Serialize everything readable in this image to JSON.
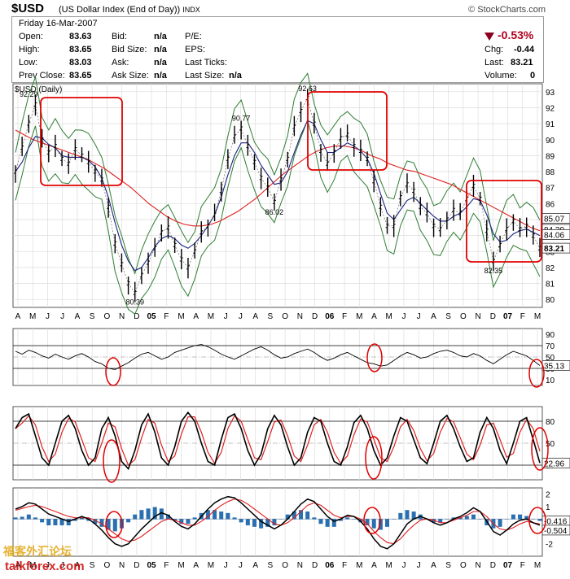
{
  "header": {
    "symbol": "$USD",
    "name": "(US Dollar Index (End of Day))",
    "exchange": "INDX",
    "brand": "© StockCharts.com"
  },
  "info": {
    "date": "Friday  16-Mar-2007",
    "open_label": "Open:",
    "open": "83.63",
    "high_label": "High:",
    "high": "83.65",
    "low_label": "Low:",
    "low": "83.03",
    "prev_label": "Prev Close:",
    "prev": "83.65",
    "bid_label": "Bid:",
    "bid": "n/a",
    "bidsize_label": "Bid Size:",
    "bidsize": "n/a",
    "ask_label": "Ask:",
    "ask": "n/a",
    "asksize_label": "Ask Size:",
    "asksize": "n/a",
    "pe_label": "P/E:",
    "eps_label": "EPS:",
    "lasttick_label": "Last Ticks:",
    "lastsize_label": "Last Size:",
    "lastsize": "n/a",
    "chg_pct": "-0.53%",
    "chg_label": "Chg:",
    "chg": "-0.44",
    "last_label": "Last:",
    "last": "83.21",
    "volume_label": "Volume:",
    "volume": "0"
  },
  "chart_data": [
    {
      "type": "line",
      "title": "$USD (Daily)",
      "ylim": [
        79.5,
        93.5
      ],
      "y_ticks": [
        80,
        81,
        82,
        83,
        84,
        85,
        86,
        87,
        88,
        89,
        90,
        91,
        92,
        93
      ],
      "x_tick_labels": [
        "A",
        "M",
        "J",
        "J",
        "A",
        "S",
        "O",
        "N",
        "D",
        "05",
        "F",
        "M",
        "A",
        "M",
        "J",
        "J",
        "A",
        "S",
        "O",
        "N",
        "D",
        "06",
        "F",
        "M",
        "A",
        "M",
        "J",
        "J",
        "A",
        "S",
        "O",
        "N",
        "D",
        "07",
        "F",
        "M"
      ],
      "bold_x_ticks": [
        "05",
        "06",
        "07"
      ],
      "annotations": [
        "92.29",
        "80.39",
        "90.77",
        "86.02",
        "92.63",
        "82.35"
      ],
      "right_labels": [
        "85.07",
        "84.39",
        "84.06",
        "83.21"
      ],
      "price_series": [
        88.0,
        89.5,
        91.0,
        92.2,
        90.0,
        89.2,
        89.6,
        88.8,
        88.5,
        89.4,
        89.0,
        88.6,
        88.0,
        87.5,
        85.8,
        83.5,
        82.2,
        81.0,
        80.4,
        81.5,
        82.3,
        83.2,
        84.2,
        84.5,
        83.4,
        82.5,
        82.0,
        83.0,
        84.2,
        84.6,
        85.3,
        86.8,
        88.8,
        90.2,
        90.7,
        89.6,
        88.6,
        87.6,
        87.0,
        86.1,
        87.5,
        88.8,
        90.8,
        91.8,
        92.6,
        91.0,
        89.3,
        88.5,
        89.2,
        90.1,
        90.3,
        89.6,
        89.3,
        88.8,
        87.4,
        85.8,
        84.6,
        84.6,
        86.4,
        87.2,
        86.8,
        85.8,
        85.4,
        84.6,
        84.4,
        85.0,
        85.6,
        85.4,
        86.3,
        87.1,
        86.3,
        84.3,
        82.4,
        83.4,
        84.4,
        84.9,
        84.4,
        84.6,
        84.0,
        83.2
      ],
      "ma_red": [
        90.6,
        90.3,
        90.0,
        89.8,
        89.6,
        89.4,
        89.2,
        89.0,
        88.8,
        88.5,
        88.2,
        87.8,
        87.4,
        87.0,
        86.5,
        86.0,
        85.6,
        85.2,
        84.9,
        84.7,
        84.6,
        84.6,
        84.7,
        84.9,
        85.2,
        85.5,
        85.9,
        86.3,
        86.8,
        87.3,
        87.8,
        88.2,
        88.6,
        89.0,
        89.3,
        89.5,
        89.6,
        89.6,
        89.5,
        89.3,
        89.0,
        88.8,
        88.5,
        88.3,
        88.1,
        88.0,
        87.8,
        87.6,
        87.4,
        87.2,
        86.9,
        86.6,
        86.3,
        86.0,
        85.7,
        85.4,
        85.1,
        84.8,
        84.5,
        84.3
      ],
      "ma_blue": [
        88.0,
        88.6,
        89.5,
        90.2,
        90.1,
        89.7,
        89.5,
        89.0,
        88.9,
        88.9,
        88.9,
        88.7,
        88.3,
        87.6,
        86.4,
        84.8,
        83.4,
        82.4,
        81.8,
        82.0,
        82.6,
        83.3,
        83.8,
        84.0,
        83.8,
        83.4,
        83.2,
        83.5,
        84.0,
        84.6,
        85.3,
        86.4,
        87.8,
        89.0,
        89.8,
        89.8,
        89.2,
        88.4,
        87.8,
        87.2,
        87.3,
        88.0,
        89.2,
        90.3,
        91.2,
        91.0,
        90.0,
        89.2,
        89.2,
        89.5,
        89.8,
        89.6,
        89.3,
        88.8,
        87.9,
        86.6,
        85.4,
        85.0,
        85.6,
        86.2,
        86.4,
        86.0,
        85.6,
        85.2,
        84.9,
        84.9,
        85.2,
        85.4,
        85.8,
        86.3,
        86.2,
        85.3,
        84.1,
        83.6,
        83.7,
        84.1,
        84.3,
        84.4,
        84.2,
        84.0
      ],
      "highlight_boxes": 4
    },
    {
      "type": "line",
      "title": "RSI",
      "ylim": [
        0,
        100
      ],
      "y_ticks": [
        10,
        30,
        50,
        70,
        90
      ],
      "last_value": "35.13",
      "values": [
        60,
        55,
        62,
        58,
        52,
        48,
        55,
        50,
        46,
        52,
        56,
        50,
        42,
        38,
        30,
        28,
        34,
        40,
        48,
        55,
        58,
        52,
        46,
        50,
        58,
        62,
        66,
        70,
        72,
        68,
        62,
        55,
        50,
        46,
        52,
        58,
        64,
        68,
        62,
        54,
        48,
        50,
        56,
        60,
        64,
        58,
        50,
        44,
        48,
        54,
        58,
        52,
        46,
        40,
        38,
        34,
        36,
        44,
        52,
        58,
        54,
        48,
        50,
        56,
        60,
        62,
        58,
        52,
        50,
        56,
        52,
        44,
        38,
        46,
        54,
        60,
        56,
        52,
        44,
        35
      ]
    },
    {
      "type": "line",
      "title": "Slow Stochastic",
      "ylim": [
        0,
        100
      ],
      "y_ticks": [
        20,
        50,
        80
      ],
      "last_value": "22.96",
      "values": [
        70,
        85,
        90,
        60,
        30,
        20,
        50,
        80,
        88,
        70,
        40,
        20,
        30,
        70,
        85,
        60,
        25,
        15,
        40,
        75,
        90,
        65,
        30,
        20,
        45,
        80,
        92,
        80,
        50,
        25,
        20,
        55,
        85,
        90,
        70,
        40,
        20,
        35,
        70,
        88,
        75,
        45,
        20,
        30,
        65,
        85,
        80,
        50,
        25,
        20,
        45,
        78,
        88,
        70,
        40,
        20,
        30,
        60,
        85,
        80,
        55,
        30,
        22,
        50,
        80,
        88,
        70,
        45,
        25,
        30,
        65,
        85,
        70,
        40,
        22,
        50,
        80,
        85,
        55,
        23
      ]
    },
    {
      "type": "line",
      "title": "MACD",
      "ylim": [
        -3,
        2.5
      ],
      "y_ticks": [
        -2,
        -1,
        0,
        1,
        2
      ],
      "last_labels": [
        "-0.416",
        "-0.504"
      ],
      "macd": [
        0.8,
        1.0,
        1.3,
        1.2,
        0.8,
        0.4,
        0.2,
        0.0,
        -0.2,
        0.0,
        0.2,
        0.0,
        -0.4,
        -0.9,
        -1.5,
        -2.0,
        -2.2,
        -2.0,
        -1.4,
        -0.8,
        -0.3,
        0.2,
        0.5,
        0.3,
        -0.2,
        -0.6,
        -0.8,
        -0.4,
        0.2,
        0.8,
        1.3,
        1.6,
        1.8,
        1.7,
        1.3,
        0.8,
        0.3,
        -0.2,
        -0.5,
        -0.8,
        -0.5,
        0.0,
        0.6,
        1.2,
        1.6,
        1.4,
        0.8,
        0.2,
        -0.2,
        0.0,
        0.3,
        0.2,
        -0.2,
        -0.8,
        -1.6,
        -2.2,
        -2.4,
        -2.0,
        -1.2,
        -0.4,
        0.0,
        0.2,
        0.0,
        -0.3,
        -0.5,
        -0.3,
        0.0,
        0.2,
        0.5,
        0.9,
        0.6,
        -0.2,
        -1.0,
        -1.3,
        -0.9,
        -0.4,
        -0.1,
        0.0,
        -0.3,
        -0.5
      ],
      "signal": [
        0.7,
        0.85,
        1.0,
        1.1,
        1.0,
        0.8,
        0.6,
        0.4,
        0.2,
        0.1,
        0.1,
        0.1,
        -0.1,
        -0.4,
        -0.8,
        -1.2,
        -1.6,
        -1.8,
        -1.7,
        -1.4,
        -1.0,
        -0.6,
        -0.2,
        0.0,
        -0.1,
        -0.3,
        -0.5,
        -0.5,
        -0.2,
        0.2,
        0.7,
        1.1,
        1.4,
        1.6,
        1.5,
        1.2,
        0.8,
        0.4,
        0.0,
        -0.4,
        -0.5,
        -0.3,
        0.1,
        0.6,
        1.1,
        1.3,
        1.1,
        0.7,
        0.3,
        0.1,
        0.2,
        0.2,
        0.0,
        -0.4,
        -1.0,
        -1.5,
        -1.9,
        -2.0,
        -1.6,
        -1.0,
        -0.5,
        -0.1,
        0.0,
        -0.1,
        -0.3,
        -0.3,
        -0.1,
        0.1,
        0.3,
        0.6,
        0.6,
        0.2,
        -0.4,
        -0.8,
        -0.9,
        -0.7,
        -0.4,
        -0.2,
        -0.3,
        -0.4
      ]
    }
  ],
  "watermark": {
    "cn": "福客外汇论坛",
    "site": "talkforex.com"
  }
}
